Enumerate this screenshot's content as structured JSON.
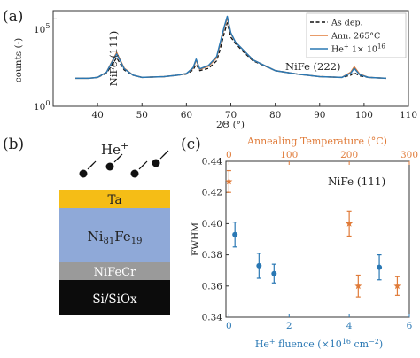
{
  "panels": {
    "a": "(a)",
    "b": "(b)",
    "c": "(c)"
  },
  "colors": {
    "as_dep": "#111111",
    "annealed": "#e07b39",
    "helium": "#2a78b4",
    "axis": "#333333",
    "ta_layer": "#f5bd16",
    "nife_layer": "#8fa9d8",
    "nifecr_layer": "#9a9a9a",
    "si_layer": "#0c0c0c",
    "ion": "#111111"
  },
  "stack": {
    "ion_label": "He",
    "ion_charge": "+",
    "layers": [
      {
        "main": "Ta",
        "sub1": "",
        "mid": "",
        "sub2": ""
      },
      {
        "main": "Ni",
        "sub1": "81",
        "mid": "Fe",
        "sub2": "19"
      },
      {
        "main": "NiFeCr",
        "sub1": "",
        "mid": "",
        "sub2": ""
      },
      {
        "main": "Si/SiOx",
        "sub1": "",
        "mid": "",
        "sub2": ""
      }
    ]
  },
  "chart_data": [
    {
      "type": "line",
      "panel": "(a)",
      "xlabel": "2Θ (°)",
      "ylabel": "counts (-)",
      "x_ticks": [
        40,
        50,
        60,
        70,
        80,
        90,
        100,
        110
      ],
      "xlim": [
        30,
        110
      ],
      "y_scale": "log",
      "ylim": [
        1,
        300000
      ],
      "y_ticks": [
        {
          "base": "10",
          "exp": "0",
          "value": 1
        },
        {
          "base": "10",
          "exp": "5",
          "value": 100000
        }
      ],
      "legend": {
        "placement": "top-right",
        "entries": [
          {
            "label": "As dep."
          },
          {
            "label": "Ann. 265°C"
          },
          {
            "label_main": "He",
            "label_sup": "+",
            "label_mid": " 1× 10",
            "label_sup2": "16"
          }
        ]
      },
      "annotations": [
        "NiFe (111)",
        "NiFe (222)"
      ],
      "series": [
        {
          "name": "As dep.",
          "style": "dashed",
          "x": [
            35,
            38,
            40,
            42,
            43.5,
            44.3,
            45,
            46,
            48,
            50,
            55,
            58,
            60,
            61.5,
            62.2,
            63,
            65,
            66.8,
            67.5,
            68.5,
            69.2,
            70,
            71,
            73,
            75,
            80,
            85,
            90,
            95,
            97,
            97.8,
            99,
            101,
            105
          ],
          "y": [
            40,
            40,
            45,
            80,
            300,
            600,
            300,
            120,
            60,
            45,
            50,
            60,
            70,
            120,
            250,
            110,
            150,
            400,
            1500,
            15000,
            60000,
            9000,
            4000,
            1200,
            400,
            110,
            70,
            50,
            45,
            60,
            85,
            55,
            45,
            40
          ]
        },
        {
          "name": "Ann. 265°C",
          "style": "solid",
          "x": [
            35,
            38,
            40,
            42,
            43.5,
            44.3,
            45,
            46,
            48,
            50,
            55,
            58,
            60,
            61.5,
            62.2,
            63,
            65,
            66.8,
            67.5,
            68.5,
            69.2,
            70,
            71,
            73,
            75,
            80,
            85,
            90,
            95,
            97,
            97.8,
            99,
            101,
            105
          ],
          "y": [
            40,
            40,
            45,
            90,
            500,
            1200,
            500,
            150,
            60,
            45,
            50,
            60,
            75,
            150,
            450,
            130,
            200,
            600,
            3000,
            30000,
            120000,
            15000,
            5000,
            1500,
            450,
            110,
            70,
            50,
            45,
            90,
            180,
            70,
            45,
            40
          ]
        },
        {
          "name": "He+ 1× 10^16",
          "style": "solid",
          "x": [
            35,
            38,
            40,
            42,
            43.5,
            44.3,
            45,
            46,
            48,
            50,
            55,
            58,
            60,
            61.5,
            62.2,
            63,
            65,
            66.8,
            67.5,
            68.5,
            69.2,
            70,
            71,
            73,
            75,
            80,
            85,
            90,
            95,
            97,
            97.8,
            99,
            101,
            105
          ],
          "y": [
            40,
            40,
            45,
            90,
            450,
            1000,
            450,
            140,
            60,
            45,
            50,
            60,
            75,
            160,
            500,
            140,
            220,
            700,
            3500,
            35000,
            140000,
            16000,
            5000,
            1500,
            450,
            110,
            70,
            50,
            45,
            80,
            150,
            65,
            45,
            40
          ]
        }
      ]
    },
    {
      "type": "scatter",
      "panel": "(c)",
      "annotation": "NiFe (111)",
      "ylabel": "FWHM",
      "ylim": [
        0.34,
        0.44
      ],
      "y_ticks": [
        "0.34",
        "0.36",
        "0.38",
        "0.40",
        "0.42",
        "0.44"
      ],
      "x_bottom": {
        "label_main": "He",
        "label_sup": "+",
        "label_mid": " fluence (×10",
        "label_sup2": "16",
        "label_mid2": " cm",
        "label_sup3": "−2",
        "label_end": ")",
        "xlim": [
          -0.1,
          6
        ],
        "ticks": [
          0,
          2,
          4,
          6
        ]
      },
      "x_top": {
        "label": "Annealing Temperature (°C)",
        "xlim": [
          -5,
          300
        ],
        "ticks": [
          0,
          100,
          200,
          300
        ]
      },
      "series": [
        {
          "name": "He+ fluence",
          "axis": "bottom",
          "marker": "dot",
          "x": [
            0.2,
            1,
            1.5,
            5
          ],
          "y": [
            0.393,
            0.373,
            0.368,
            0.372
          ],
          "err": [
            0.008,
            0.008,
            0.006,
            0.008
          ]
        },
        {
          "name": "Annealing Temperature",
          "axis": "top",
          "marker": "star",
          "x": [
            0,
            200,
            215,
            280
          ],
          "y": [
            0.427,
            0.4,
            0.36,
            0.36
          ],
          "err": [
            0.007,
            0.008,
            0.007,
            0.006
          ]
        }
      ]
    }
  ]
}
